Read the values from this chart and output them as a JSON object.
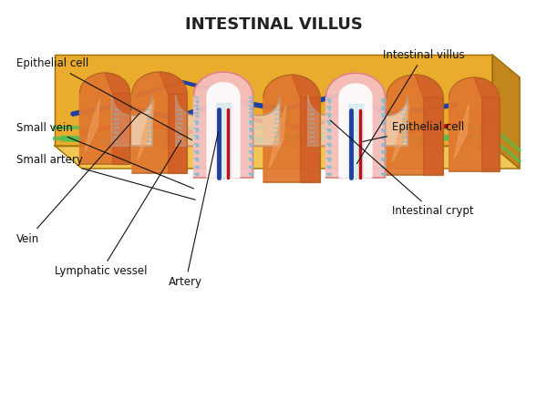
{
  "title": "INTESTINAL VILLUS",
  "title_fontsize": 13,
  "title_color": "#222222",
  "background_color": "#ffffff",
  "labels": {
    "epithelial_cell_left": "Epithelial cell",
    "small_vein": "Small vein",
    "small_artery": "Small artery",
    "vein": "Vein",
    "lymphatic_vessel": "Lymphatic vessel",
    "artery": "Artery",
    "intestinal_villus": "Intestinal villus",
    "epithelial_cell_right": "Epithelial cell",
    "intestinal_crypt": "Intestinal crypt"
  },
  "colors": {
    "villus_outer": "#E07830",
    "villus_inner": "#C85020",
    "villus_highlight": "#F0A060",
    "epithelium": "#F5C0C0",
    "epithelium_border": "#E08080",
    "lacteal": "#D0E8F0",
    "vein_color": "#2040A0",
    "artery_color": "#C01010",
    "lymph_color": "#50C050",
    "base_color": "#E8A820",
    "base_shadow": "#C08010",
    "crypt_color": "#F0D0B0",
    "microvilli_color": "#80C0D0"
  }
}
